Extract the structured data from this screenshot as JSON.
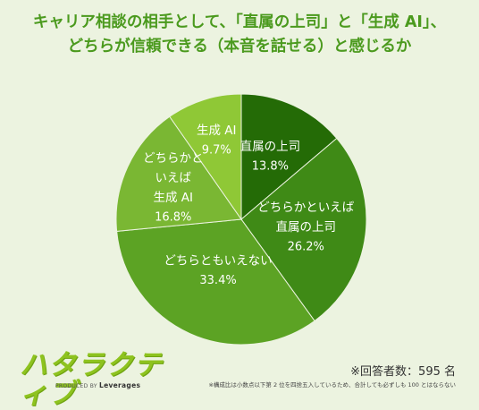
{
  "title_lines": [
    "キャリア相談の相手として、「直属の上司」と「生成 AI」、",
    "どちらが信頼できる（本音を話せる）と感じるか"
  ],
  "chart_data": {
    "type": "pie",
    "title": "キャリア相談の相手として、「直属の上司」と「生成 AI」、どちらが信頼できる（本音を話せる）と感じるか",
    "start_angle": "12 o'clock, clockwise",
    "slices": [
      {
        "label": "直属の上司",
        "value": 13.8,
        "display": "13.8%",
        "color": "#246b06"
      },
      {
        "label": "どちらかといえば直属の上司",
        "value": 26.2,
        "display": "26.2%",
        "color": "#3f8a16"
      },
      {
        "label": "どちらともいえない",
        "value": 33.4,
        "display": "33.4%",
        "color": "#5ca324"
      },
      {
        "label": "どちらかといえば生成 AI",
        "value": 16.8,
        "display": "16.8%",
        "color": "#7ab733"
      },
      {
        "label": "生成 AI",
        "value": 9.7,
        "display": "9.7%",
        "color": "#8fc836"
      }
    ]
  },
  "footer": {
    "logo_text": "ハタラクティブ",
    "produced_by": "PRODUCED BY",
    "company": "Leverages",
    "respondents": "※回答者数：595 名",
    "note": "※構成比は小数点以下第 2 位を四捨五入しているため、合計しても必ずしも 100 とはならない"
  },
  "colors": {
    "background": "#ecf3e0",
    "title": "#4b9a1e",
    "slice_label": "#ffffff"
  }
}
